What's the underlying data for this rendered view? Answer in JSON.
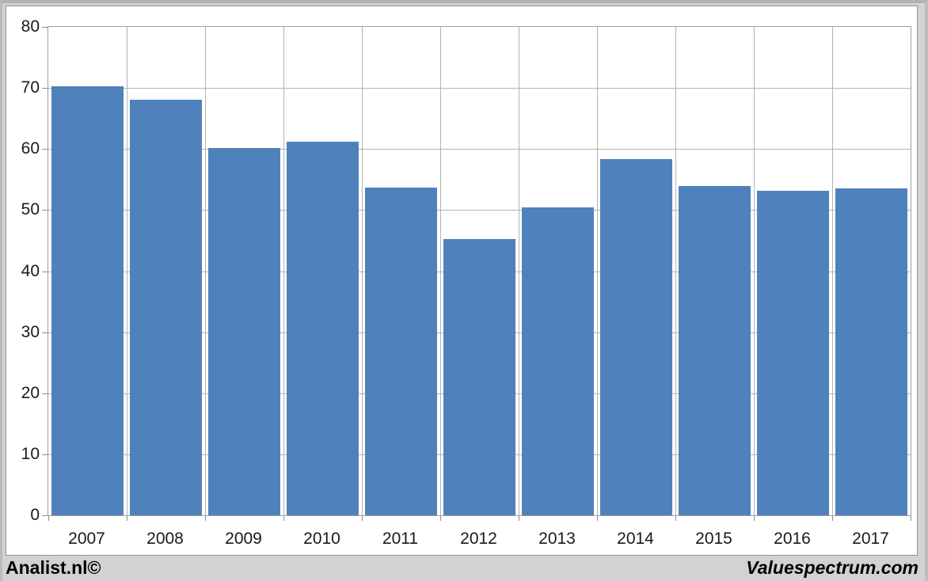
{
  "chart_data": {
    "type": "bar",
    "categories": [
      "2007",
      "2008",
      "2009",
      "2010",
      "2011",
      "2012",
      "2013",
      "2014",
      "2015",
      "2016",
      "2017"
    ],
    "values": [
      70.3,
      68.1,
      60.1,
      61.2,
      53.7,
      45.2,
      50.5,
      58.4,
      54.0,
      53.2,
      53.6
    ],
    "title": "",
    "xlabel": "",
    "ylabel": "",
    "ylim": [
      0,
      80
    ],
    "yticks": [
      0,
      10,
      20,
      30,
      40,
      50,
      60,
      70,
      80
    ],
    "grid": true,
    "legend": "none",
    "bar_color": "#4f81bd"
  },
  "footer": {
    "left": "Analist.nl©",
    "right": "Valuespectrum.com"
  },
  "colors": {
    "bar": "#4f81bd",
    "gridline": "#b3b3b3",
    "plot_border": "#a0a0a0",
    "page_background": "#d2d2d2",
    "chart_background": "#ffffff",
    "text": "#1a1a1a"
  }
}
